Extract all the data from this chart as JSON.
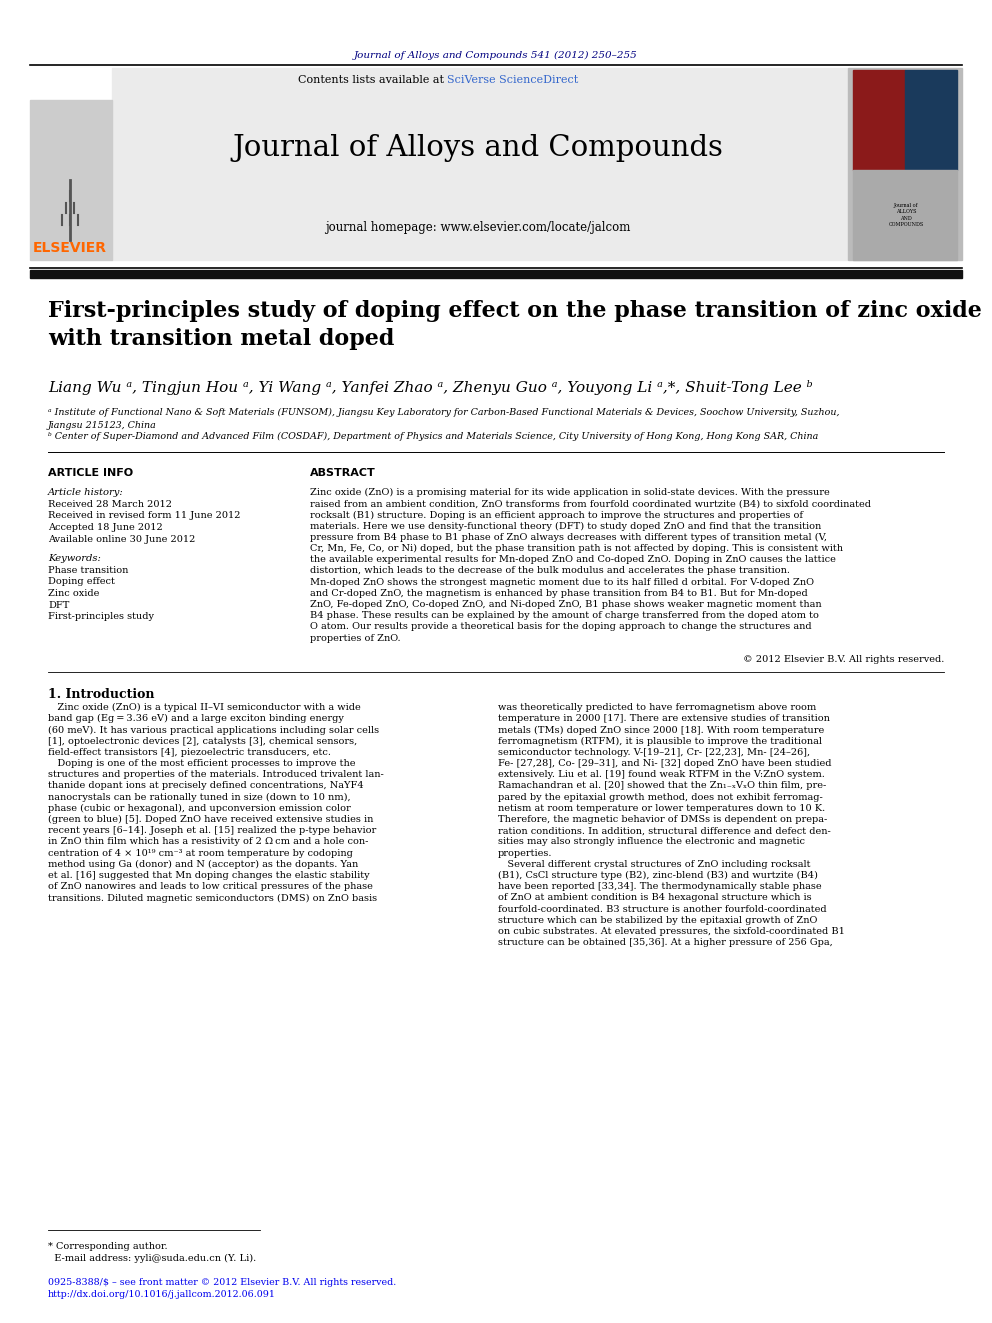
{
  "journal_citation": "Journal of Alloys and Compounds 541 (2012) 250–255",
  "journal_name": "Journal of Alloys and Compounds",
  "journal_homepage": "journal homepage: www.elsevier.com/locate/jalcom",
  "contents_text": "Contents lists available at ",
  "sciverse_text": "SciVerse ScienceDirect",
  "paper_title": "First-principles study of doping effect on the phase transition of zinc oxide\nwith transition metal doped",
  "authors": "Liang Wu ᵃ, Tingjun Hou ᵃ, Yi Wang ᵃ, Yanfei Zhao ᵃ, Zhenyu Guo ᵃ, Youyong Li ᵃ,*, Shuit-Tong Lee ᵇ",
  "affiliation_a": "ᵃ Institute of Functional Nano & Soft Materials (FUNSOM), Jiangsu Key Laboratory for Carbon-Based Functional Materials & Devices, Soochow University, Suzhou,\nJiangsu 215123, China",
  "affiliation_b": "ᵇ Center of Super-Diamond and Advanced Film (COSDAF), Department of Physics and Materials Science, City University of Hong Kong, Hong Kong SAR, China",
  "article_info_header": "ARTICLE INFO",
  "abstract_header": "ABSTRACT",
  "article_history": "Article history:",
  "received_text": "Received 28 March 2012",
  "received_revised": "Received in revised form 11 June 2012",
  "accepted": "Accepted 18 June 2012",
  "available": "Available online 30 June 2012",
  "keywords_header": "Keywords:",
  "keywords": [
    "Phase transition",
    "Doping effect",
    "Zinc oxide",
    "DFT",
    "First-principles study"
  ],
  "copyright_text": "© 2012 Elsevier B.V. All rights reserved.",
  "intro_header": "1. Introduction",
  "footnote_star": "* Corresponding author.",
  "footnote_email": "  E-mail address: yyli@suda.edu.cn (Y. Li).",
  "bottom_line1": "0925-8388/$ – see front matter © 2012 Elsevier B.V. All rights reserved.",
  "bottom_line2": "http://dx.doi.org/10.1016/j.jallcom.2012.06.091",
  "abstract_lines": [
    "Zinc oxide (ZnO) is a promising material for its wide application in solid-state devices. With the pressure",
    "raised from an ambient condition, ZnO transforms from fourfold coordinated wurtzite (B4) to sixfold coordinated",
    "rocksalt (B1) structure. Doping is an efficient approach to improve the structures and properties of",
    "materials. Here we use density-functional theory (DFT) to study doped ZnO and find that the transition",
    "pressure from B4 phase to B1 phase of ZnO always decreases with different types of transition metal (V,",
    "Cr, Mn, Fe, Co, or Ni) doped, but the phase transition path is not affected by doping. This is consistent with",
    "the available experimental results for Mn-doped ZnO and Co-doped ZnO. Doping in ZnO causes the lattice",
    "distortion, which leads to the decrease of the bulk modulus and accelerates the phase transition.",
    "Mn-doped ZnO shows the strongest magnetic moment due to its half filled d orbital. For V-doped ZnO",
    "and Cr-doped ZnO, the magnetism is enhanced by phase transition from B4 to B1. But for Mn-doped",
    "ZnO, Fe-doped ZnO, Co-doped ZnO, and Ni-doped ZnO, B1 phase shows weaker magnetic moment than",
    "B4 phase. These results can be explained by the amount of charge transferred from the doped atom to",
    "O atom. Our results provide a theoretical basis for the doping approach to change the structures and",
    "properties of ZnO."
  ],
  "intro_col1_lines": [
    "   Zinc oxide (ZnO) is a typical II–VI semiconductor with a wide",
    "band gap (Eg = 3.36 eV) and a large exciton binding energy",
    "(60 meV). It has various practical applications including solar cells",
    "[1], optoelectronic devices [2], catalysts [3], chemical sensors,",
    "field-effect transistors [4], piezoelectric transducers, etc.",
    "   Doping is one of the most efficient processes to improve the",
    "structures and properties of the materials. Introduced trivalent lan-",
    "thanide dopant ions at precisely defined concentrations, NaYF4",
    "nanocrystals can be rationally tuned in size (down to 10 nm),",
    "phase (cubic or hexagonal), and upconversion emission color",
    "(green to blue) [5]. Doped ZnO have received extensive studies in",
    "recent years [6–14]. Joseph et al. [15] realized the p-type behavior",
    "in ZnO thin film which has a resistivity of 2 Ω cm and a hole con-",
    "centration of 4 × 10¹⁹ cm⁻³ at room temperature by codoping",
    "method using Ga (donor) and N (acceptor) as the dopants. Yan",
    "et al. [16] suggested that Mn doping changes the elastic stability",
    "of ZnO nanowires and leads to low critical pressures of the phase",
    "transitions. Diluted magnetic semiconductors (DMS) on ZnO basis"
  ],
  "intro_col2_lines": [
    "was theoretically predicted to have ferromagnetism above room",
    "temperature in 2000 [17]. There are extensive studies of transition",
    "metals (TMs) doped ZnO since 2000 [18]. With room temperature",
    "ferromagnetism (RTFM), it is plausible to improve the traditional",
    "semiconductor technology. V-[19–21], Cr- [22,23], Mn- [24–26],",
    "Fe- [27,28], Co- [29–31], and Ni- [32] doped ZnO have been studied",
    "extensively. Liu et al. [19] found weak RTFM in the V:ZnO system.",
    "Ramachandran et al. [20] showed that the Zn₁₋ₓVₓO thin film, pre-",
    "pared by the epitaxial growth method, does not exhibit ferromag-",
    "netism at room temperature or lower temperatures down to 10 K.",
    "Therefore, the magnetic behavior of DMSs is dependent on prepa-",
    "ration conditions. In addition, structural difference and defect den-",
    "sities may also strongly influence the electronic and magnetic",
    "properties.",
    "   Several different crystal structures of ZnO including rocksalt",
    "(B1), CsCl structure type (B2), zinc-blend (B3) and wurtzite (B4)",
    "have been reported [33,34]. The thermodynamically stable phase",
    "of ZnO at ambient condition is B4 hexagonal structure which is",
    "fourfold-coordinated. B3 structure is another fourfold-coordinated",
    "structure which can be stabilized by the epitaxial growth of ZnO",
    "on cubic substrates. At elevated pressures, the sixfold-coordinated B1",
    "structure can be obtained [35,36]. At a higher pressure of 256 Gpa,"
  ],
  "colors": {
    "dark_navy": "#000080",
    "elsevier_orange": "#FF6600",
    "sciverse_blue": "#3366CC",
    "header_bg": "#EBEBEB",
    "black_bar": "#111111",
    "link_blue": "#0000EE"
  }
}
